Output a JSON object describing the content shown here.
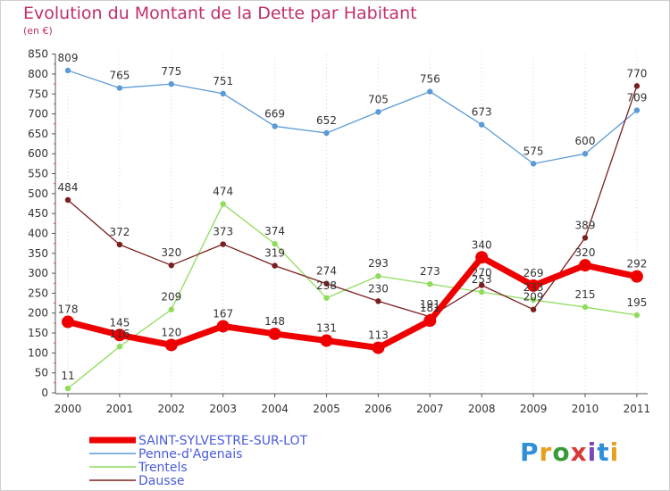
{
  "title": "Evolution du Montant de la Dette par Habitant",
  "unit": "(en €)",
  "logo_text": "Proxiti",
  "chart_data": {
    "type": "line",
    "x": [
      "2000",
      "2001",
      "2002",
      "2003",
      "2004",
      "2005",
      "2006",
      "2007",
      "2008",
      "2009",
      "2010",
      "2011"
    ],
    "ylim": [
      0,
      850
    ],
    "yticks": [
      "0",
      "50",
      "100",
      "150",
      "200",
      "250",
      "300",
      "350",
      "400",
      "450",
      "500",
      "550",
      "600",
      "650",
      "700",
      "750",
      "800",
      "850"
    ],
    "grid": "vertical dotted",
    "legend_position": "bottom-left",
    "series": [
      {
        "name": "SAINT-SYLVESTRE-SUR-LOT",
        "color": "#ee0000",
        "values": [
          178,
          145,
          120,
          167,
          148,
          131,
          113,
          181,
          340,
          269,
          320,
          292
        ]
      },
      {
        "name": "Penne-d'Agenais",
        "color": "#5b9bd5",
        "values": [
          809,
          765,
          775,
          751,
          669,
          652,
          705,
          756,
          673,
          575,
          600,
          709
        ]
      },
      {
        "name": "Trentels",
        "color": "#8fdc5c",
        "values": [
          11,
          116,
          209,
          474,
          374,
          238,
          293,
          273,
          253,
          233,
          215,
          195
        ]
      },
      {
        "name": "Dausse",
        "color": "#7a1f1f",
        "values": [
          484,
          372,
          320,
          373,
          319,
          274,
          230,
          191,
          270,
          209,
          389,
          770
        ]
      }
    ],
    "data_labels": [
      [
        "178",
        "145",
        "120",
        "167",
        "148",
        "131",
        "113",
        "181",
        "340",
        "269",
        "320",
        "292"
      ],
      [
        "809",
        "765",
        "775",
        "751",
        "669",
        "652",
        "705",
        "756",
        "673",
        "575",
        "600",
        "709"
      ],
      [
        "11",
        "116",
        "209",
        "474",
        "374",
        "238",
        "293",
        "273",
        "253",
        "233",
        "215",
        "195"
      ],
      [
        "484",
        "372",
        "320",
        "373",
        "319",
        "274",
        "230",
        "191",
        "270",
        "209",
        "389",
        "770"
      ]
    ]
  }
}
